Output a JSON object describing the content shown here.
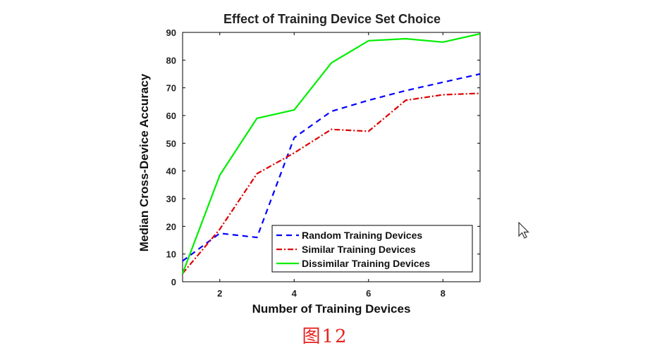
{
  "chart_data": {
    "type": "line",
    "title": "Effect of Training Device Set Choice",
    "xlabel": "Number of Training Devices",
    "ylabel": "Median Cross-Device Accuracy",
    "xlim": [
      1,
      9
    ],
    "ylim": [
      0,
      90
    ],
    "xticks": [
      2,
      4,
      6,
      8
    ],
    "yticks": [
      0,
      10,
      20,
      30,
      40,
      50,
      60,
      70,
      80,
      90
    ],
    "grid": false,
    "legend_position": "lower-right",
    "x": [
      1,
      2,
      3,
      4,
      5,
      6,
      7,
      8,
      9
    ],
    "series": [
      {
        "name": "Random Training Devices",
        "color": "#0000ff",
        "style": "dashed",
        "values": [
          7.5,
          17.5,
          16,
          52,
          61.5,
          65.5,
          69,
          72,
          75
        ]
      },
      {
        "name": "Similar Training Devices",
        "color": "#dd0000",
        "style": "dashdot",
        "values": [
          3,
          19,
          39,
          46.5,
          55,
          54.3,
          65.5,
          67.5,
          68
        ]
      },
      {
        "name": "Dissimilar Training Devices",
        "color": "#00ee00",
        "style": "solid",
        "values": [
          3,
          38.5,
          59,
          62,
          79,
          87,
          87.7,
          86.5,
          89.5
        ]
      }
    ]
  },
  "caption": "图12"
}
